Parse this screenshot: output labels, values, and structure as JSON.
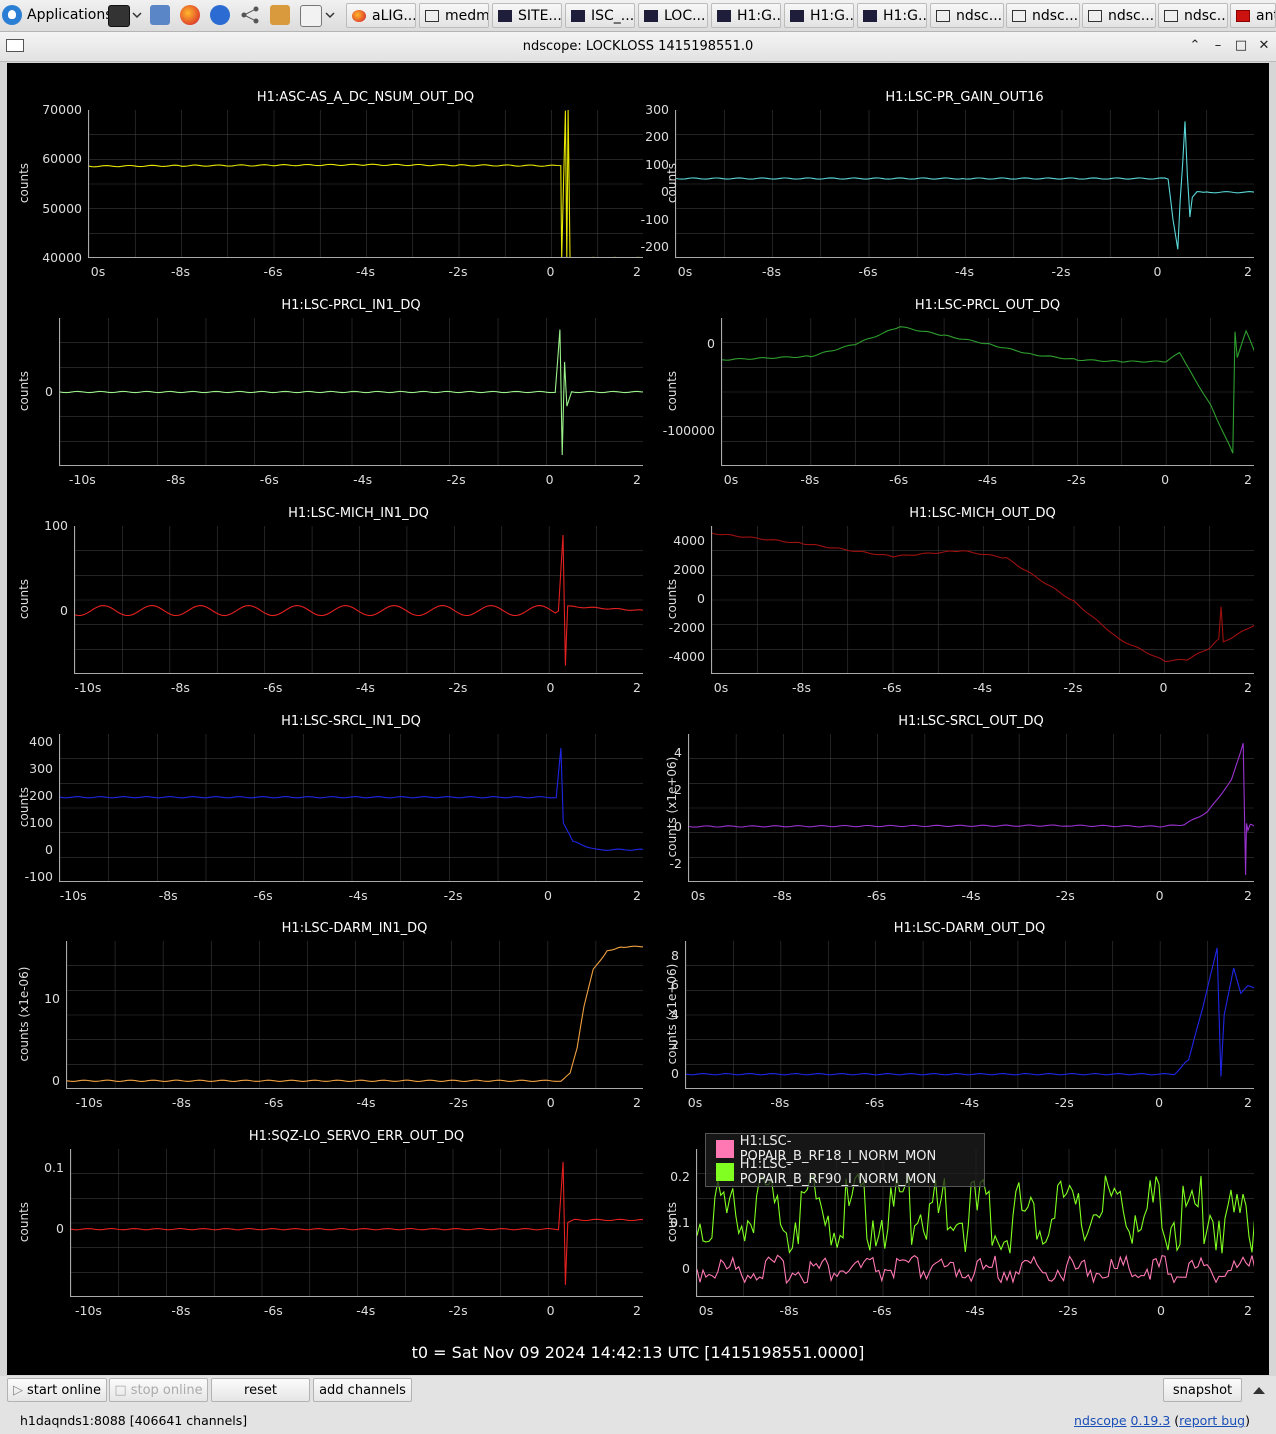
{
  "taskbar": {
    "apps_label": "Applications",
    "items": [
      {
        "label": "aLIG...",
        "icon": "firefox-icon"
      },
      {
        "label": "medm",
        "icon": "window-icon"
      },
      {
        "label": "SITE...",
        "icon": "window-icon"
      },
      {
        "label": "ISC_...",
        "icon": "window-icon"
      },
      {
        "label": "LOC...",
        "icon": "window-icon"
      },
      {
        "label": "H1:G...",
        "icon": "window-icon"
      },
      {
        "label": "H1:G...",
        "icon": "window-icon"
      },
      {
        "label": "H1:G...",
        "icon": "window-icon"
      },
      {
        "label": "ndsc...",
        "icon": "window-icon"
      },
      {
        "label": "ndsc...",
        "icon": "window-icon"
      },
      {
        "label": "ndsc...",
        "icon": "window-icon"
      },
      {
        "label": "ndsc...",
        "icon": "window-icon"
      },
      {
        "label": "ant",
        "icon": "pdf-icon"
      }
    ]
  },
  "window": {
    "title": "ndscope: LOCKLOSS 1415198551.0"
  },
  "t0_label": "t0 = Sat Nov 09 2024 14:42:13 UTC [1415198551.0000]",
  "buttons": {
    "start_online": "start online",
    "stop_online": "stop online",
    "reset": "reset",
    "add_channels": "add channels",
    "snapshot": "snapshot"
  },
  "status": {
    "server": "h1daqnds1:8088  [406641 channels]",
    "app_name": "ndscope",
    "version": "0.19.3",
    "report_bug": "report bug"
  },
  "colors": {
    "background": "#000000",
    "grid": "#3a3a3a"
  },
  "chart_data": [
    {
      "type": "line",
      "title": "H1:ASC-AS_A_DC_NSUM_OUT_DQ",
      "ylabel": "counts",
      "color": "#e6e600",
      "xlim": [
        -10,
        2
      ],
      "ylim": [
        40000,
        70000
      ],
      "yticks": [
        "70000",
        "60000",
        "50000",
        "40000"
      ],
      "xticks": [
        "0s",
        "-8s",
        "-6s",
        "-4s",
        "-2s",
        "0",
        "2"
      ],
      "series": [
        {
          "x": [
            -10,
            -8,
            -6,
            -4,
            -2,
            0.05,
            0.2,
            0.22,
            0.3,
            0.33,
            0.36,
            0.4,
            2
          ],
          "y": [
            58600,
            58700,
            58800,
            58900,
            58800,
            58700,
            58700,
            40000,
            70000,
            40000,
            70000,
            40000,
            40000
          ]
        }
      ]
    },
    {
      "type": "line",
      "title": "H1:LSC-PR_GAIN_OUT16",
      "ylabel": "counts",
      "color": "#5ad6d6",
      "xlim": [
        -10,
        2
      ],
      "ylim": [
        -240,
        300
      ],
      "yticks": [
        "300",
        "200",
        "100",
        "0",
        "-100",
        "-200"
      ],
      "xticks": [
        "0s",
        "-8s",
        "-6s",
        "-4s",
        "-2s",
        "0",
        "2"
      ],
      "series": [
        {
          "x": [
            -10,
            -4,
            0.2,
            0.3,
            0.4,
            0.45,
            0.5,
            0.55,
            0.6,
            0.65,
            0.7,
            0.8,
            1.0,
            2
          ],
          "y": [
            50,
            50,
            50,
            -100,
            -210,
            -30,
            100,
            260,
            60,
            -90,
            -20,
            0,
            0,
            0
          ]
        }
      ]
    },
    {
      "type": "line",
      "title": "H1:LSC-PRCL_IN1_DQ",
      "ylabel": "counts",
      "color": "#9bf08a",
      "xlim": [
        -10.5,
        2
      ],
      "ylim": [
        -1,
        1
      ],
      "yticks": [
        "0"
      ],
      "xticks": [
        "-10s",
        "-8s",
        "-6s",
        "-4s",
        "-2s",
        "0",
        "2"
      ],
      "series": [
        {
          "x": [
            -10.5,
            0.1,
            0.2,
            0.25,
            0.3,
            0.35,
            0.45,
            2
          ],
          "y": [
            0,
            0,
            0.85,
            -0.85,
            0.4,
            -0.2,
            0,
            0
          ]
        }
      ]
    },
    {
      "type": "line",
      "title": "H1:LSC-PRCL_OUT_DQ",
      "ylabel": "counts",
      "color": "#2e9e2e",
      "xlim": [
        -10,
        2
      ],
      "ylim": [
        -140000,
        30000
      ],
      "yticks": [
        "0",
        "-100000"
      ],
      "xticks": [
        "0s",
        "-8s",
        "-6s",
        "-4s",
        "-2s",
        "0",
        "2"
      ],
      "series": [
        {
          "x": [
            -10,
            -8,
            -7,
            -6,
            -5,
            -4,
            -3,
            -2,
            -1,
            0,
            0.3,
            0.5,
            1.0,
            1.5,
            1.55,
            1.6,
            1.8,
            2
          ],
          "y": [
            -18000,
            -14000,
            0,
            20000,
            10000,
            0,
            -12000,
            -18000,
            -20000,
            -20000,
            -10000,
            -28000,
            -70000,
            -125000,
            15000,
            -15000,
            15000,
            -10000
          ]
        }
      ]
    },
    {
      "type": "line",
      "title": "H1:LSC-MICH_IN1_DQ",
      "ylabel": "counts",
      "color": "#e52020",
      "xlim": [
        -10.3,
        2
      ],
      "ylim": [
        -75,
        100
      ],
      "yticks": [
        "100",
        "0"
      ],
      "xticks": [
        "-10s",
        "-8s",
        "-6s",
        "-4s",
        "-2s",
        "0",
        "2"
      ],
      "series": [
        {
          "x": [
            -10.3,
            0.15,
            0.25,
            0.3,
            0.35,
            2
          ],
          "y": [
            0,
            0,
            90,
            -65,
            5,
            0
          ]
        }
      ]
    },
    {
      "type": "line",
      "title": "H1:LSC-MICH_OUT_DQ",
      "ylabel": "counts",
      "color": "#9e1010",
      "xlim": [
        -10,
        2
      ],
      "ylim": [
        -5200,
        5000
      ],
      "yticks": [
        "4000",
        "2000",
        "0",
        "-2000",
        "-4000"
      ],
      "xticks": [
        "0s",
        "-8s",
        "-6s",
        "-4s",
        "-2s",
        "0",
        "2"
      ],
      "series": [
        {
          "x": [
            -10,
            -8,
            -6,
            -4.5,
            -3.5,
            -2,
            -1,
            0,
            0.5,
            1,
            1.2,
            1.25,
            1.3,
            2
          ],
          "y": [
            4500,
            3800,
            2900,
            3300,
            2800,
            -200,
            -2800,
            -4300,
            -4200,
            -3400,
            -2800,
            -600,
            -3000,
            -1800
          ]
        }
      ]
    },
    {
      "type": "line",
      "title": "H1:LSC-SRCL_IN1_DQ",
      "ylabel": "counts",
      "color": "#1f26e6",
      "xlim": [
        -10.3,
        2
      ],
      "ylim": [
        -120,
        430
      ],
      "yticks": [
        "400",
        "300",
        "200",
        "100",
        "0",
        "-100"
      ],
      "xticks": [
        "-10s",
        "-8s",
        "-6s",
        "-4s",
        "-2s",
        "0",
        "2"
      ],
      "series": [
        {
          "x": [
            -10.3,
            0.15,
            0.25,
            0.3,
            0.5,
            1.0,
            2
          ],
          "y": [
            195,
            195,
            380,
            100,
            30,
            0,
            0
          ]
        }
      ]
    },
    {
      "type": "line",
      "title": "H1:LSC-SRCL_OUT_DQ",
      "ylabel": "counts (x1e+06)",
      "color": "#9a32d0",
      "xlim": [
        -10,
        2
      ],
      "ylim": [
        -3,
        5
      ],
      "yticks": [
        "4",
        "2",
        "0",
        "-2"
      ],
      "xticks": [
        "0s",
        "-8s",
        "-6s",
        "-4s",
        "-2s",
        "0",
        "2"
      ],
      "series": [
        {
          "x": [
            -10,
            -2,
            0,
            0.5,
            1.0,
            1.5,
            1.75,
            1.8,
            1.82,
            1.85,
            1.9,
            2
          ],
          "y": [
            0,
            0.05,
            0,
            0.1,
            0.8,
            2.5,
            4.5,
            -2.6,
            0.2,
            -0.2,
            0.1,
            0
          ]
        }
      ]
    },
    {
      "type": "line",
      "title": "H1:LSC-DARM_IN1_DQ",
      "ylabel": "counts (x1e-06)",
      "color": "#f0a040",
      "xlim": [
        -10.5,
        2
      ],
      "ylim": [
        -1,
        17
      ],
      "yticks": [
        "10",
        "0"
      ],
      "xticks": [
        "-10s",
        "-8s",
        "-6s",
        "-4s",
        "-2s",
        "0",
        "2"
      ],
      "series": [
        {
          "x": [
            -10.5,
            0.2,
            0.4,
            0.55,
            0.7,
            0.9,
            1.2,
            1.5,
            2
          ],
          "y": [
            0,
            0,
            1,
            4,
            9,
            13.5,
            15.8,
            16.3,
            16.3
          ]
        }
      ]
    },
    {
      "type": "line",
      "title": "H1:LSC-DARM_OUT_DQ",
      "ylabel": "counts (x1e+06)",
      "color": "#1f26e6",
      "xlim": [
        -10,
        2
      ],
      "ylim": [
        -1,
        9
      ],
      "yticks": [
        "8",
        "6",
        "4",
        "2",
        "0"
      ],
      "xticks": [
        "0s",
        "-8s",
        "-6s",
        "-4s",
        "-2s",
        "0",
        "2"
      ],
      "series": [
        {
          "x": [
            -10,
            0.3,
            0.6,
            0.9,
            1.2,
            1.28,
            1.35,
            1.55,
            1.7,
            1.85,
            2
          ],
          "y": [
            0,
            0,
            1,
            4.5,
            8.5,
            -0.2,
            4,
            7.2,
            5.5,
            6,
            5.8
          ]
        }
      ]
    },
    {
      "type": "line",
      "title": "H1:SQZ-LO_SERVO_ERR_OUT_DQ",
      "ylabel": "counts",
      "color": "#e52020",
      "xlim": [
        -10.4,
        2
      ],
      "ylim": [
        -0.11,
        0.13
      ],
      "yticks": [
        "0.1",
        "0"
      ],
      "xticks": [
        "-10s",
        "-8s",
        "-6s",
        "-4s",
        "-2s",
        "0",
        "2"
      ],
      "series": [
        {
          "x": [
            -10.4,
            0.15,
            0.25,
            0.3,
            0.35,
            0.5,
            2
          ],
          "y": [
            0,
            0,
            0.11,
            -0.09,
            0.01,
            0.015,
            0.015
          ]
        }
      ]
    },
    {
      "type": "line",
      "title": "",
      "ylabel": "counts",
      "legend": "top-left",
      "xlim": [
        -10,
        2
      ],
      "ylim": [
        -0.06,
        0.26
      ],
      "yticks": [
        "0.2",
        "0.1",
        "0"
      ],
      "xticks": [
        "0s",
        "-8s",
        "-6s",
        "-4s",
        "-2s",
        "0",
        "2"
      ],
      "series": [
        {
          "name": "H1:LSC-POPAIR_B_RF18_I_NORM_MON",
          "color": "#ff78b4",
          "x": [
            -10,
            -5,
            0,
            2
          ],
          "y": [
            0,
            0,
            0,
            0
          ]
        },
        {
          "name": "H1:LSC-POPAIR_B_RF90_I_NORM_MON",
          "color": "#80ff20",
          "x": [
            -10,
            -5,
            0,
            2
          ],
          "y": [
            0.12,
            0.12,
            0.12,
            0.12
          ]
        }
      ]
    }
  ]
}
